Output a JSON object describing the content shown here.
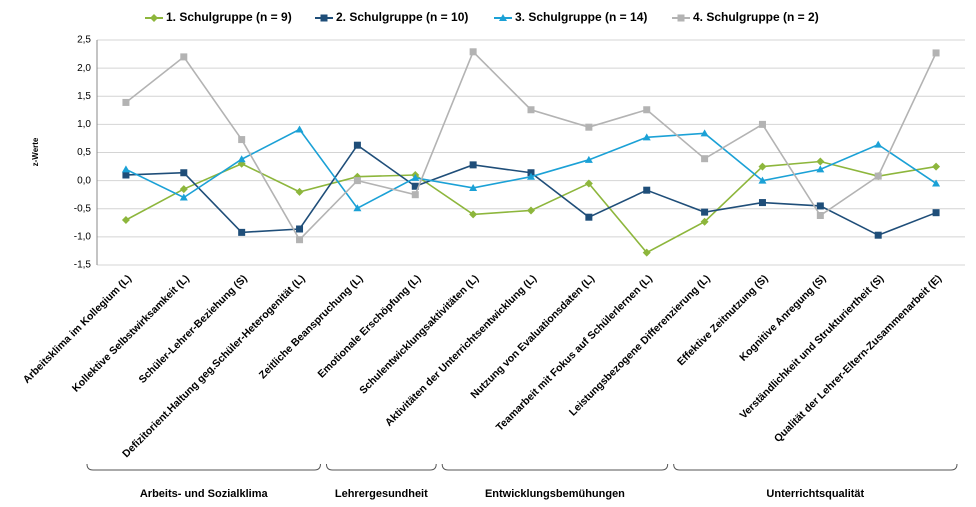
{
  "chart_data": {
    "type": "line",
    "y_label": "z-Werte",
    "categories": [
      "Arbeitsklima  im  Kollegium  (L)",
      "Kollektive Selbstwirksamkeit  (L)",
      "Schüler-Lehrer-Beziehung  (S)",
      "Defizitorient.Haltung geg.Schüler-Heterogenität (L)",
      "Zeitliche  Beanspruchung (L)",
      "Emotionale  Erschöpfung (L)",
      "Schulentwicklungsaktivitäten  (L)",
      "Aktivitäten der Unterrichtsentwicklung  (L)",
      "Nutzung von Evaluationsdaten  (L)",
      "Teamarbeit mit Fokus auf Schülerlernen (L)",
      "Leistungsbezogene Differenzierung (L)",
      "Effektive Zeitnutzung (S)",
      "Kognitive Anregung (S)",
      "Verständlichkeit und Strukturiertheit (S)",
      "Qualität der Lehrer-Eltern-Zusammenarbeit (E)"
    ],
    "series": [
      {
        "name": "1. Schulgruppe (n = 9)",
        "color": "#8db63c",
        "marker": "diamond",
        "values": [
          -0.7,
          -0.15,
          0.3,
          -0.2,
          0.07,
          0.1,
          -0.6,
          -0.53,
          -0.05,
          -1.28,
          -0.73,
          0.25,
          0.34,
          0.08,
          0.25
        ]
      },
      {
        "name": "2. Schulgruppe (n = 10)",
        "color": "#1f4e79",
        "marker": "square",
        "values": [
          0.1,
          0.14,
          -0.92,
          -0.86,
          0.63,
          -0.1,
          0.28,
          0.14,
          -0.65,
          -0.17,
          -0.56,
          -0.39,
          -0.45,
          -0.97,
          -0.57
        ]
      },
      {
        "name": "3. Schulgruppe (n = 14)",
        "color": "#1ba1d6",
        "marker": "triangle",
        "values": [
          0.2,
          -0.3,
          0.38,
          0.91,
          -0.49,
          0.05,
          -0.13,
          0.07,
          0.37,
          0.77,
          0.84,
          0,
          0.2,
          0.64,
          -0.05
        ]
      },
      {
        "name": "4. Schulgruppe (n = 2)",
        "color": "#b3b3b3",
        "marker": "square",
        "values": [
          1.39,
          2.2,
          0.73,
          -1.05,
          0,
          -0.25,
          2.29,
          1.26,
          0.95,
          1.26,
          0.39,
          1.0,
          -0.62,
          0.08,
          2.27
        ]
      }
    ],
    "groups": [
      {
        "label": "Arbeits- und Sozialklima",
        "count": 4
      },
      {
        "label": "Lehrergesundheit",
        "count": 2
      },
      {
        "label": "Entwicklungsbemühungen",
        "count": 4
      },
      {
        "label": "Unterrichtsqualität",
        "count": 5
      }
    ],
    "ylim": [
      -1.5,
      2.5
    ],
    "yticks": [
      {
        "value": -1.5,
        "label": "-1,5"
      },
      {
        "value": -1,
        "label": "-1,0"
      },
      {
        "value": -0.5,
        "label": "-0,5"
      },
      {
        "value": 0,
        "label": "0,0"
      },
      {
        "value": 0.5,
        "label": "0,5"
      },
      {
        "value": 1,
        "label": "1,0"
      },
      {
        "value": 1.5,
        "label": "1,5"
      },
      {
        "value": 2,
        "label": "2,0"
      },
      {
        "value": 2.5,
        "label": "2,5"
      }
    ],
    "grid": true,
    "legend": "top"
  }
}
